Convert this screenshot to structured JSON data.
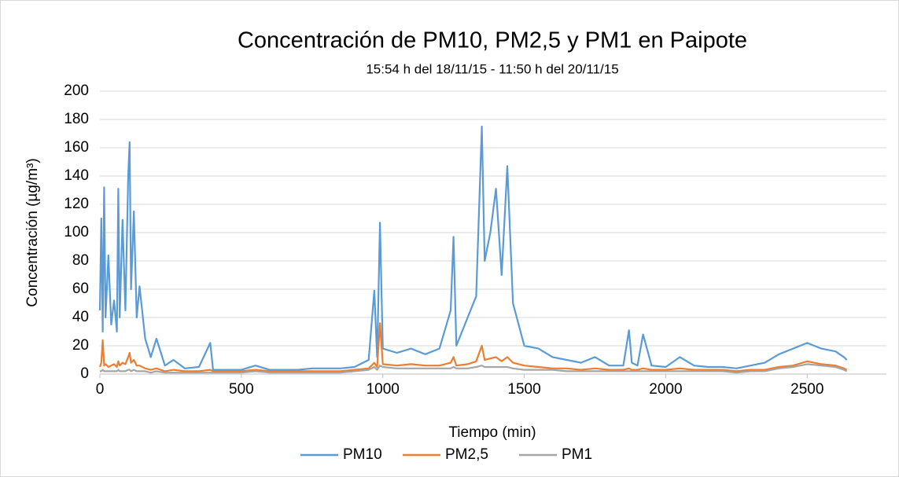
{
  "chart_data": {
    "type": "line",
    "title": "Concentración de PM10, PM2,5 y PM1 en Paipote",
    "subtitle": "15:54 h del 18/11/15 - 11:50 h del 20/11/15",
    "x_label": "Tiempo (min)",
    "y_label": "Concentración (µg/m³)",
    "x": [
      0,
      5,
      10,
      15,
      20,
      30,
      40,
      50,
      60,
      65,
      70,
      80,
      90,
      100,
      105,
      110,
      120,
      130,
      140,
      160,
      180,
      200,
      230,
      260,
      300,
      350,
      390,
      400,
      450,
      500,
      550,
      600,
      650,
      700,
      750,
      800,
      850,
      900,
      950,
      970,
      980,
      990,
      1000,
      1050,
      1100,
      1150,
      1200,
      1240,
      1250,
      1260,
      1300,
      1330,
      1350,
      1360,
      1380,
      1400,
      1420,
      1440,
      1460,
      1500,
      1550,
      1600,
      1650,
      1700,
      1750,
      1800,
      1850,
      1870,
      1880,
      1900,
      1920,
      1950,
      2000,
      2050,
      2100,
      2150,
      2200,
      2250,
      2300,
      2350,
      2400,
      2450,
      2500,
      2550,
      2600,
      2630,
      2640
    ],
    "series": [
      {
        "name": "PM10",
        "color": "#5b9bd5",
        "values": [
          45,
          110,
          30,
          132,
          40,
          84,
          35,
          52,
          30,
          131,
          40,
          109,
          45,
          140,
          164,
          60,
          115,
          40,
          62,
          25,
          12,
          25,
          6,
          10,
          4,
          5,
          22,
          3,
          3,
          3,
          6,
          3,
          3,
          3,
          4,
          4,
          4,
          5,
          10,
          59,
          12,
          107,
          18,
          15,
          18,
          14,
          18,
          45,
          97,
          20,
          40,
          55,
          175,
          80,
          100,
          131,
          70,
          147,
          50,
          20,
          18,
          12,
          10,
          8,
          12,
          6,
          6,
          31,
          8,
          6,
          28,
          6,
          5,
          12,
          6,
          5,
          5,
          4,
          6,
          8,
          14,
          18,
          22,
          18,
          16,
          12,
          10
        ]
      },
      {
        "name": "PM2,5",
        "color": "#ed7d31",
        "values": [
          5,
          8,
          24,
          6,
          7,
          5,
          6,
          7,
          5,
          9,
          6,
          8,
          7,
          12,
          15,
          8,
          10,
          6,
          6,
          4,
          3,
          4,
          2,
          3,
          2,
          2,
          3,
          2,
          2,
          2,
          3,
          2,
          2,
          2,
          2,
          2,
          2,
          3,
          4,
          8,
          5,
          36,
          7,
          6,
          7,
          6,
          6,
          8,
          12,
          6,
          7,
          9,
          20,
          10,
          11,
          12,
          9,
          12,
          8,
          6,
          5,
          4,
          4,
          3,
          4,
          3,
          3,
          4,
          3,
          3,
          4,
          3,
          3,
          4,
          3,
          3,
          3,
          2,
          3,
          3,
          5,
          6,
          9,
          7,
          6,
          4,
          3
        ]
      },
      {
        "name": "PM1",
        "color": "#a5a5a5",
        "values": [
          2,
          2,
          3,
          2,
          2,
          2,
          2,
          2,
          2,
          3,
          2,
          2,
          2,
          3,
          3,
          2,
          3,
          2,
          2,
          2,
          1,
          2,
          1,
          1,
          1,
          1,
          1,
          1,
          1,
          1,
          2,
          1,
          1,
          1,
          1,
          1,
          1,
          2,
          3,
          5,
          3,
          6,
          5,
          4,
          4,
          4,
          4,
          4,
          5,
          4,
          4,
          5,
          6,
          5,
          5,
          5,
          5,
          5,
          4,
          3,
          3,
          3,
          2,
          2,
          2,
          2,
          2,
          2,
          2,
          2,
          2,
          2,
          2,
          2,
          2,
          2,
          2,
          1,
          2,
          2,
          4,
          5,
          7,
          6,
          5,
          3,
          2
        ]
      }
    ],
    "xlim": [
      0,
      2780
    ],
    "xticks": [
      0,
      500,
      1000,
      1500,
      2000,
      2500
    ],
    "ylim": [
      0,
      200
    ],
    "yticks": [
      0,
      20,
      40,
      60,
      80,
      100,
      120,
      140,
      160,
      180,
      200
    ],
    "grid": true,
    "legend": "bottom"
  }
}
